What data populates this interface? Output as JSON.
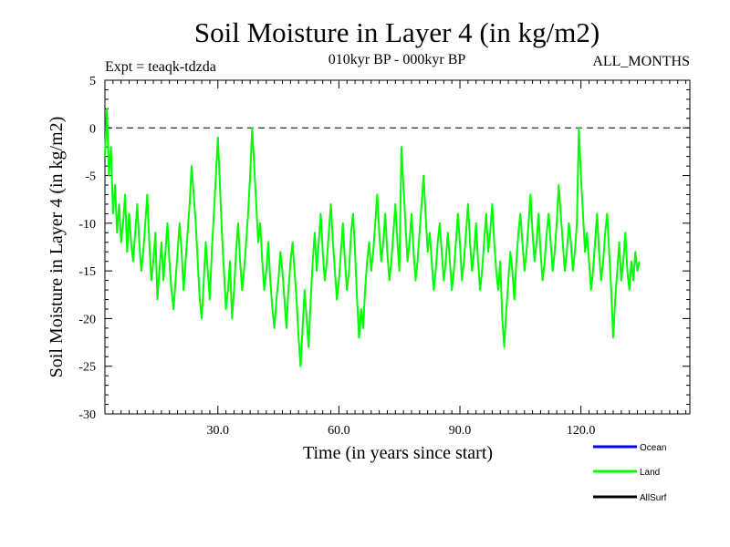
{
  "chart_data": {
    "type": "line",
    "title": "Soil Moisture in Layer 4 (in kg/m2)",
    "subtitle_left": "Expt = teaqk-tdzda",
    "subtitle_center": "010kyr BP - 000kyr BP",
    "subtitle_right": "ALL_MONTHS",
    "xlabel": "Time (in years since start)",
    "ylabel": "Soil Moisture in Layer 4 (in kg/m2)",
    "xlim": [
      2,
      147
    ],
    "ylim": [
      -30,
      5
    ],
    "xticks": [
      30,
      60,
      90,
      120
    ],
    "xtick_labels": [
      "30.0",
      "60.0",
      "90.0",
      "120.0"
    ],
    "yticks": [
      5,
      0,
      -5,
      -10,
      -15,
      -20,
      -25,
      -30
    ],
    "ytick_labels": [
      "5",
      "0",
      "-5",
      "-10",
      "-15",
      "-20",
      "-25",
      "-30"
    ],
    "reference_line": 0,
    "legend": [
      {
        "name": "Ocean",
        "color": "#0000ff"
      },
      {
        "name": "Land",
        "color": "#00ff00"
      },
      {
        "name": "AllSurf",
        "color": "#000000"
      }
    ],
    "series": [
      {
        "name": "Land",
        "color": "#00ff00",
        "x_start": 2,
        "x_step": 0.5,
        "values": [
          -3,
          2,
          -5,
          -2,
          -9,
          -6,
          -11,
          -8,
          -12,
          -10,
          -7,
          -13,
          -9,
          -12,
          -14,
          -11,
          -8,
          -12,
          -15,
          -13,
          -10,
          -7,
          -12,
          -16,
          -14,
          -11,
          -18,
          -15,
          -12,
          -16,
          -13,
          -10,
          -14,
          -17,
          -19,
          -16,
          -13,
          -10,
          -13,
          -17,
          -14,
          -11,
          -8,
          -4,
          -7,
          -10,
          -14,
          -18,
          -20,
          -16,
          -12,
          -15,
          -18,
          -13,
          -9,
          -5,
          -1,
          -6,
          -11,
          -15,
          -19,
          -17,
          -14,
          -20,
          -17,
          -13,
          -10,
          -14,
          -17,
          -15,
          -12,
          -9,
          -5,
          0,
          -4,
          -8,
          -12,
          -10,
          -14,
          -17,
          -15,
          -12,
          -16,
          -19,
          -21,
          -18,
          -16,
          -13,
          -15,
          -18,
          -21,
          -17,
          -14,
          -12,
          -15,
          -18,
          -22,
          -25,
          -21,
          -17,
          -20,
          -23,
          -18,
          -14,
          -11,
          -15,
          -12,
          -9,
          -13,
          -16,
          -14,
          -11,
          -8,
          -12,
          -15,
          -18,
          -16,
          -13,
          -10,
          -14,
          -17,
          -15,
          -11,
          -9,
          -13,
          -18,
          -22,
          -19,
          -21,
          -17,
          -14,
          -12,
          -15,
          -13,
          -10,
          -7,
          -11,
          -14,
          -12,
          -9,
          -13,
          -16,
          -14,
          -11,
          -8,
          -12,
          -15,
          -2,
          -6,
          -10,
          -14,
          -12,
          -9,
          -13,
          -16,
          -14,
          -11,
          -8,
          -5,
          -9,
          -13,
          -11,
          -14,
          -17,
          -15,
          -12,
          -10,
          -13,
          -16,
          -14,
          -11,
          -14,
          -17,
          -15,
          -12,
          -9,
          -12,
          -16,
          -14,
          -11,
          -8,
          -12,
          -15,
          -13,
          -10,
          -14,
          -17,
          -15,
          -12,
          -9,
          -13,
          -11,
          -8,
          -12,
          -15,
          -17,
          -14,
          -20,
          -23,
          -19,
          -16,
          -13,
          -15,
          -18,
          -14,
          -11,
          -9,
          -12,
          -15,
          -13,
          -10,
          -7,
          -11,
          -14,
          -12,
          -9,
          -13,
          -16,
          -14,
          -11,
          -9,
          -12,
          -15,
          -13,
          -10,
          -6,
          -9,
          -12,
          -15,
          -13,
          -10,
          -12,
          -15,
          -13,
          -10,
          0,
          -5,
          -9,
          -13,
          -11,
          -14,
          -17,
          -15,
          -12,
          -9,
          -13,
          -16,
          -14,
          -11,
          -9,
          -13,
          -17,
          -22,
          -18,
          -15,
          -12,
          -16,
          -14,
          -11,
          -15,
          -17,
          -14,
          -16,
          -13,
          -15,
          -14
        ]
      }
    ]
  }
}
